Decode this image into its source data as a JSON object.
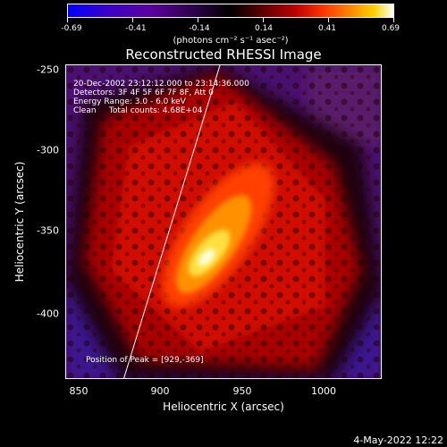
{
  "colorbar": {
    "ticks": [
      "-0.69",
      "-0.41",
      "-0.14",
      "0.14",
      "0.41",
      "0.69"
    ],
    "units": "(photons cm⁻² s⁻¹ asec⁻²)"
  },
  "title": "Reconstructed RHESSI Image",
  "info": {
    "time": "20-Dec-2002 23:12:12.000 to 23:14:36.000",
    "detectors": "Detectors: 3F 4F 5F 6F 7F 8F, Att 0",
    "energy": "Energy Range: 3.0 - 6.0 keV",
    "clean": "Clean     Total counts: 4.68E+04",
    "peak": "Position of Peak = [929,-369]"
  },
  "axes": {
    "xlabel": "Heliocentric X (arcsec)",
    "ylabel": "Heliocentric Y (arcsec)",
    "x_ticks": [
      "850",
      "900",
      "950",
      "1000"
    ],
    "y_ticks": [
      "-250",
      "-300",
      "-350",
      "-400"
    ]
  },
  "footer": {
    "date": "4-May-2022 12:22"
  },
  "colors": {
    "background": "#000000",
    "text": "#ffffff"
  }
}
